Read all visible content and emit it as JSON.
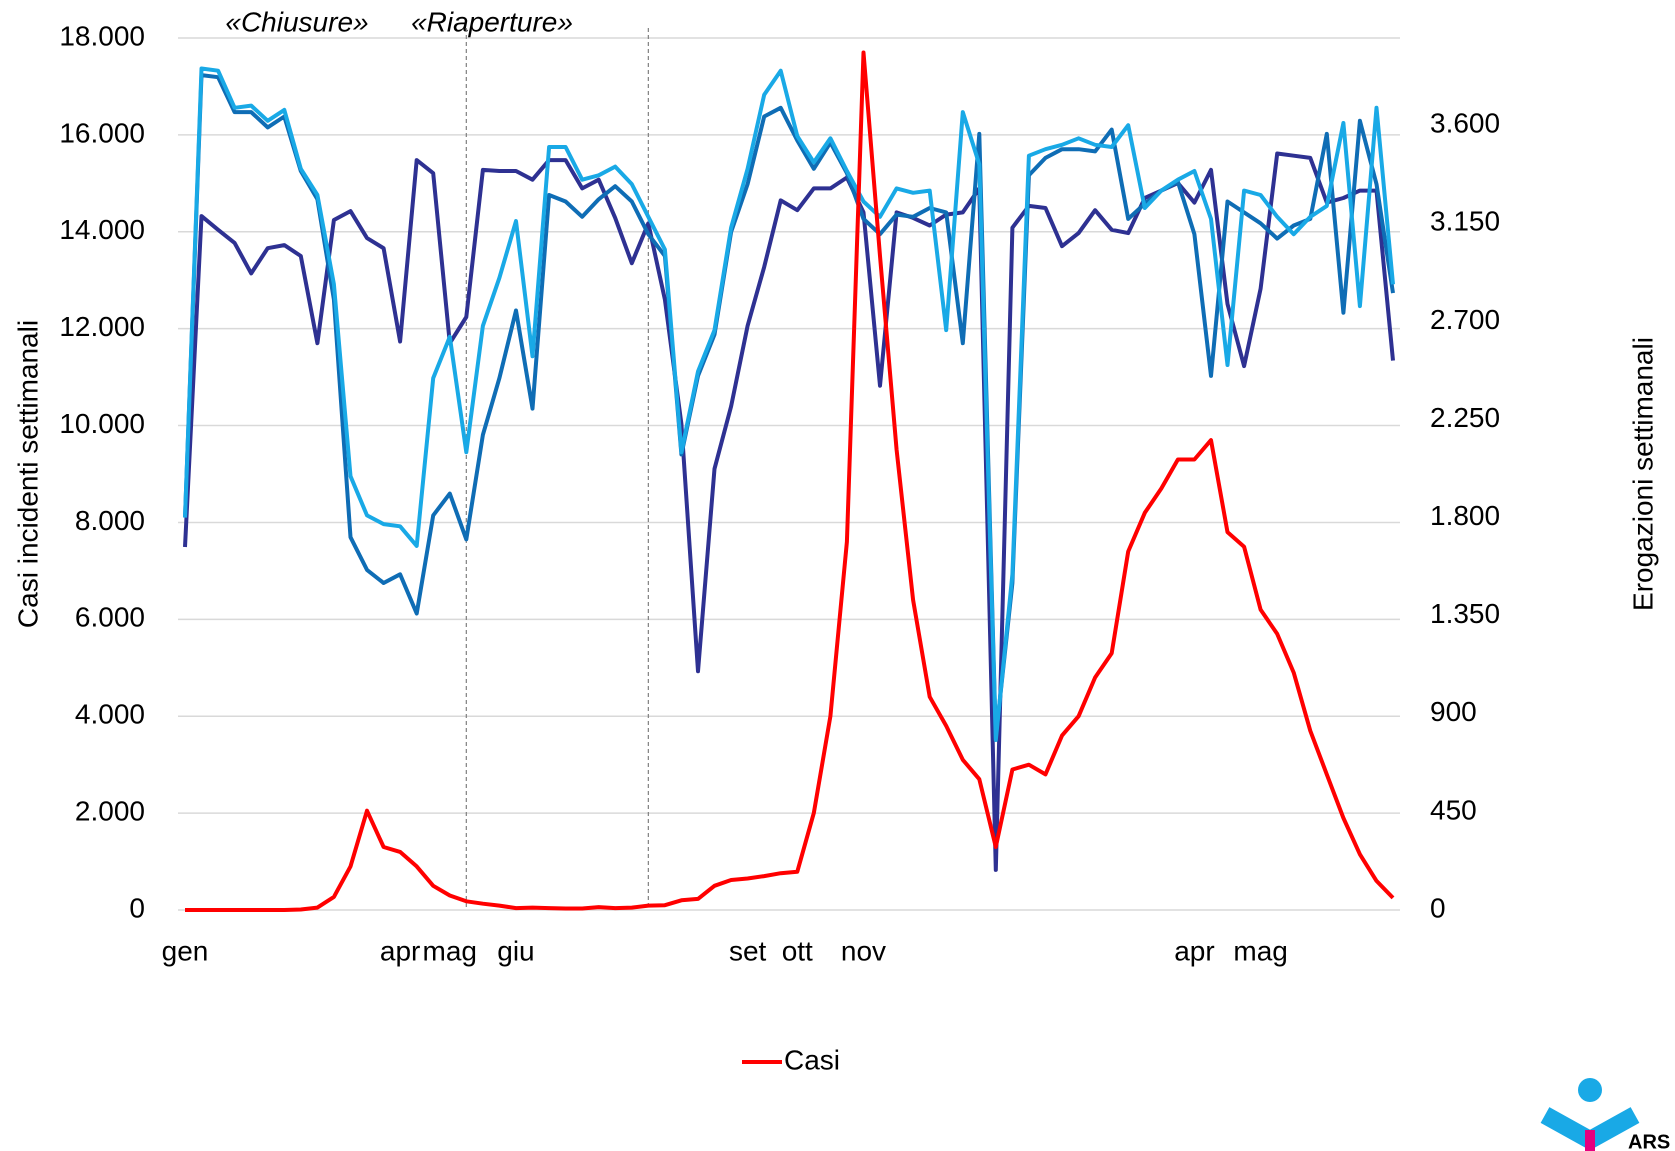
{
  "chart_data": {
    "type": "line",
    "categories": [
      "gen",
      null,
      null,
      null,
      null,
      null,
      null,
      null,
      null,
      null,
      null,
      null,
      null,
      "apr",
      null,
      null,
      "mag",
      null,
      null,
      null,
      "giu",
      null,
      null,
      null,
      null,
      null,
      null,
      null,
      null,
      null,
      null,
      null,
      null,
      null,
      "set",
      null,
      null,
      "ott",
      null,
      null,
      null,
      "nov",
      null,
      null,
      null,
      null,
      null,
      null,
      null,
      null,
      null,
      null,
      null,
      null,
      null,
      null,
      null,
      null,
      null,
      null,
      null,
      "apr",
      null,
      null,
      null,
      "mag",
      null,
      null,
      null,
      null,
      null,
      null,
      null,
      null
    ],
    "series": [
      {
        "name": "Casi",
        "color": "#ff0000",
        "axis": "y",
        "values": [
          0,
          0,
          0,
          0,
          0,
          0,
          0,
          10,
          50,
          270,
          900,
          2050,
          1300,
          1200,
          900,
          500,
          300,
          180,
          130,
          90,
          40,
          50,
          40,
          30,
          30,
          60,
          40,
          50,
          90,
          100,
          200,
          230,
          500,
          620,
          650,
          700,
          760,
          790,
          2000,
          4000,
          7600,
          17700,
          13500,
          9500,
          6400,
          4400,
          3800,
          3100,
          2700,
          1300,
          2900,
          3000,
          2800,
          3600,
          4000,
          4800,
          5300,
          7400,
          8200,
          8700,
          9300,
          9300,
          9700,
          7800,
          7500,
          6200,
          5700,
          4900,
          3700,
          2800,
          1900,
          1150,
          600,
          250
        ]
      },
      {
        "color": "#2e3192",
        "axis": "y2",
        "values": [
          1665,
          3183,
          3120,
          3060,
          2920,
          3036,
          3050,
          3000,
          2600,
          3165,
          3206,
          3082,
          3036,
          2608,
          3440,
          3380,
          2600,
          2720,
          3395,
          3390,
          3390,
          3350,
          3440,
          3440,
          3310,
          3350,
          3175,
          2967,
          3150,
          2800,
          2230,
          1095,
          2024,
          2310,
          2680,
          2950,
          3255,
          3210,
          3310,
          3310,
          3360,
          3200,
          2405,
          3200,
          3175,
          3140,
          3190,
          3200,
          3310,
          184,
          3130,
          3230,
          3220,
          3045,
          3105,
          3210,
          3120,
          3105,
          3266,
          3300,
          3335,
          3245,
          3395,
          2780,
          2495,
          2850,
          3470,
          3460,
          3450,
          3245,
          3266,
          3300,
          3300,
          2520
        ]
      },
      {
        "color": "#0f6db5",
        "axis": "y2",
        "values": [
          1800,
          3830,
          3820,
          3660,
          3660,
          3590,
          3640,
          3390,
          3260,
          2800,
          1710,
          1560,
          1500,
          1540,
          1360,
          1810,
          1910,
          1700,
          2180,
          2440,
          2750,
          2300,
          3280,
          3250,
          3180,
          3260,
          3320,
          3250,
          3100,
          3000,
          2090,
          2450,
          2640,
          3110,
          3330,
          3640,
          3680,
          3530,
          3400,
          3520,
          3380,
          3170,
          3100,
          3190,
          3180,
          3220,
          3200,
          2600,
          3560,
          790,
          1500,
          3370,
          3450,
          3490,
          3490,
          3480,
          3580,
          3170,
          3240,
          3300,
          3340,
          3100,
          2450,
          3250,
          3200,
          3150,
          3080,
          3140,
          3170,
          3560,
          2740,
          3620,
          3330,
          2830
        ]
      },
      {
        "color": "#19a9e6",
        "axis": "y2",
        "values": [
          1800,
          3860,
          3850,
          3680,
          3690,
          3620,
          3670,
          3400,
          3280,
          2870,
          1990,
          1810,
          1770,
          1760,
          1670,
          2440,
          2630,
          2100,
          2680,
          2900,
          3160,
          2540,
          3500,
          3500,
          3350,
          3370,
          3410,
          3330,
          3180,
          3030,
          2100,
          2470,
          2660,
          3130,
          3400,
          3740,
          3850,
          3550,
          3430,
          3540,
          3390,
          3250,
          3180,
          3310,
          3290,
          3300,
          2660,
          3660,
          3420,
          780,
          1540,
          3460,
          3490,
          3510,
          3540,
          3510,
          3500,
          3600,
          3220,
          3300,
          3350,
          3390,
          3170,
          2500,
          3300,
          3280,
          3180,
          3100,
          3180,
          3230,
          3610,
          2770,
          3680,
          2870
        ]
      }
    ],
    "ylabel": "Casi incidenti settimanali",
    "y2label": "Erogazioni settimanali",
    "ylim": [
      0,
      18000
    ],
    "yticks": [
      0,
      {
        "value": 2000,
        "label": "2.000"
      },
      {
        "value": 4000,
        "label": "4.000"
      },
      {
        "value": 6000,
        "label": "6.000"
      },
      {
        "value": 8000,
        "label": "8.000"
      },
      {
        "value": 10000,
        "label": "10.000"
      },
      {
        "value": 12000,
        "label": "12.000"
      },
      {
        "value": 14000,
        "label": "14.000"
      },
      {
        "value": 16000,
        "label": "16.000"
      },
      {
        "value": 18000,
        "label": "18.000"
      }
    ],
    "y2lim": [
      0,
      4000
    ],
    "y2ticks": [
      0,
      450,
      900,
      {
        "value": 1350,
        "label": "1.350"
      },
      {
        "value": 1800,
        "label": "1.800"
      },
      {
        "value": 2250,
        "label": "2.250"
      },
      {
        "value": 2700,
        "label": "2.700"
      },
      {
        "value": 3150,
        "label": "3.150"
      },
      {
        "value": 3600,
        "label": "3.600"
      }
    ],
    "grid": true,
    "annotations": [
      "«Chiusure»",
      "«Riaperture»"
    ],
    "vlines": [
      17,
      28
    ],
    "legend": "bottom",
    "logo": "ARS"
  }
}
